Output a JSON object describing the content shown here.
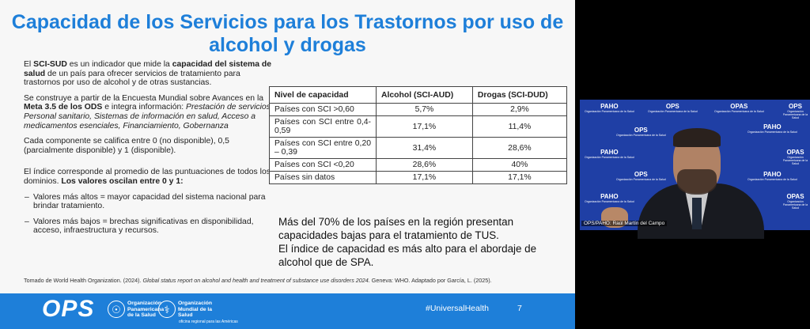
{
  "slide": {
    "title": "Capacidad de los Servicios para los Trastornos por uso de alcohol y drogas",
    "intro": {
      "p1_start": "El ",
      "p1_bold1": "SCI-SUD",
      "p1_mid": " es un indicador que mide la ",
      "p1_bold2": "capacidad del sistema de salud",
      "p1_end": " de un país para ofrecer servicios de tratamiento para trastornos por uso de alcohol y de otras sustancias.",
      "p2_start": "Se construye a partir de la Encuesta Mundial sobre Avances en la ",
      "p2_bold": "Meta 3.5 de los ODS",
      "p2_mid": " e integra información: ",
      "p2_italic": "Prestación de servicios, Personal sanitario, Sistemas de información en salud, Acceso a medicamentos esenciales, Financiamiento, Gobernanza",
      "p3": "Cada componente se califica entre 0 (no disponible), 0,5 (parcialmente disponible) y 1 (disponible).",
      "p4_start": "El índice corresponde al promedio de las puntuaciones de todos los dominios. ",
      "p4_bold": "Los valores oscilan entre 0 y 1:",
      "bullet1": "Valores más altos = mayor capacidad del sistema nacional para brindar tratamiento.",
      "bullet2": "Valores más bajos = brechas significativas en disponibilidad, acceso, infraestructura y recursos."
    },
    "table": {
      "headers": [
        "Nivel de capacidad",
        "Alcohol (SCI-AUD)",
        "Drogas (SCI-DUD)"
      ],
      "rows": [
        {
          "label": "Países con SCI >0,60",
          "alcohol": "5,7%",
          "drogas": "2,9%"
        },
        {
          "label": "Países con SCI entre 0,4-0,59",
          "alcohol": "17,1%",
          "drogas": "11,4%"
        },
        {
          "label": "Países con SCI entre 0,20 – 0,39",
          "alcohol": "31,4%",
          "drogas": "28,6%"
        },
        {
          "label": "Países con SCI <0,20",
          "alcohol": "28,6%",
          "drogas": "40%"
        },
        {
          "label": "Países sin datos",
          "alcohol": "17,1%",
          "drogas": "17,1%"
        }
      ]
    },
    "summary": {
      "line1": "Más del 70% de los países en la región presentan capacidades bajas para el tratamiento de TUS.",
      "line2": "El índice de capacidad es más alto para el abordaje de alcohol que de SPA."
    },
    "citation_start": "Tomado de World Health Organization. (2024). ",
    "citation_italic": "Global status report on alcohol and health and treatment of substance use disorders 2024.",
    "citation_end": " Geneva: WHO. Adaptado por García, L. (2025).",
    "footer": {
      "logo": "OPS",
      "org1": "Organización Panamericana de la Salud",
      "org2": "Organización Mundial de la Salud",
      "org2_sub": "oficina regional para las Américas",
      "hashtag": "#UniversalHealth",
      "page_number": "7"
    }
  },
  "video": {
    "caption": "OPS/PAHO: Raúl Martín del Campo",
    "backdrop_logos": [
      "PAHO",
      "OPS",
      "OPAS",
      "PAHO",
      "OPS"
    ],
    "backdrop_sub": "Organización Panamericana de la Salud"
  },
  "colors": {
    "accent": "#1e7fd9",
    "video_bg": "#1f3fa5"
  }
}
